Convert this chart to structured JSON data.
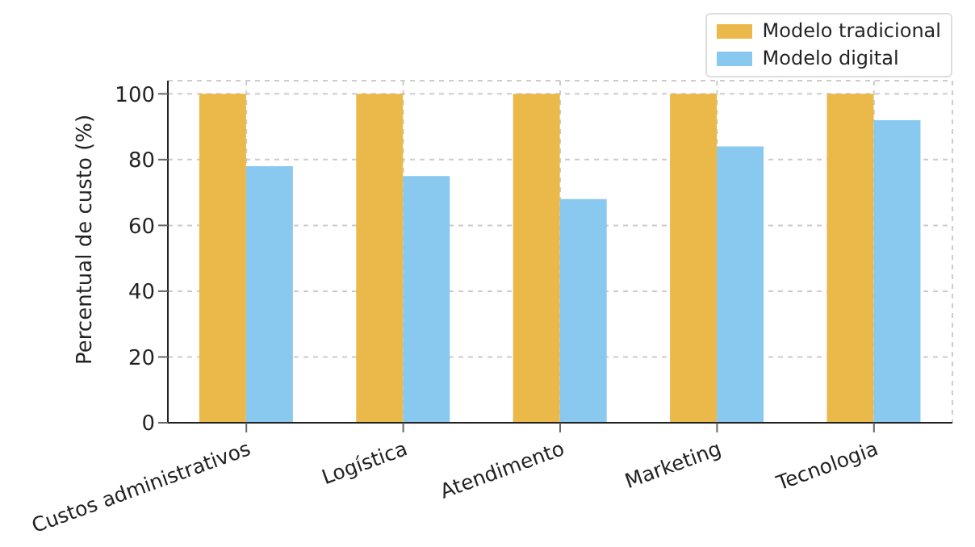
{
  "chart_data": {
    "type": "bar",
    "ylabel": "Percentual de custo (%)",
    "categories": [
      "Custos administrativos",
      "Logística",
      "Atendimento",
      "Marketing",
      "Tecnologia"
    ],
    "series": [
      {
        "name": "Modelo tradicional",
        "color": "#ebb94a",
        "values": [
          100,
          100,
          100,
          100,
          100
        ]
      },
      {
        "name": "Modelo digital",
        "color": "#89c8ef",
        "values": [
          78,
          75,
          68,
          84,
          92
        ]
      }
    ],
    "ylim": [
      0,
      104
    ],
    "yticks": [
      0,
      20,
      40,
      60,
      80,
      100
    ],
    "grid": true,
    "legend": "top right"
  }
}
